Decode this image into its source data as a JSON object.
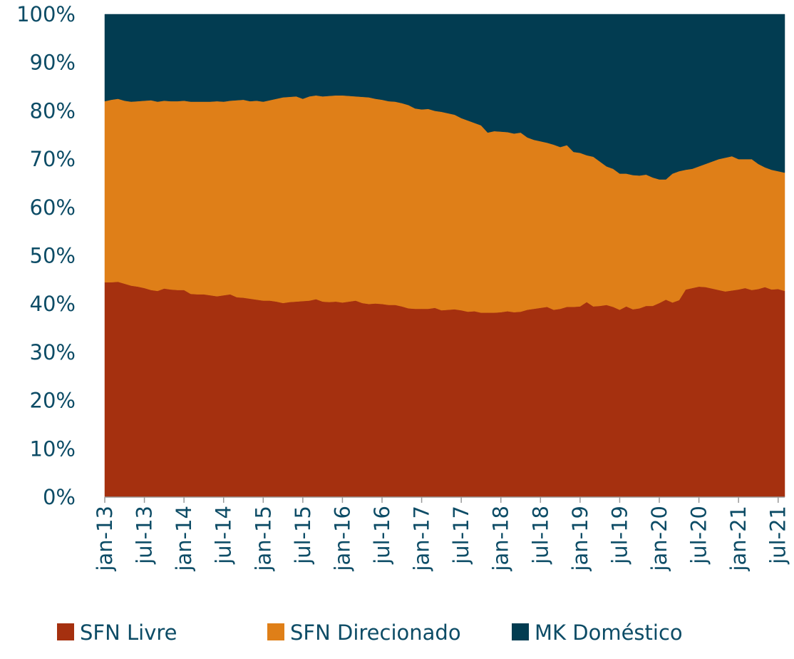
{
  "chart_data": {
    "type": "area",
    "stacked": true,
    "categories": [
      "jan-13",
      null,
      null,
      null,
      null,
      null,
      "jul-13",
      null,
      null,
      null,
      null,
      null,
      "jan-14",
      null,
      null,
      null,
      null,
      null,
      "jul-14",
      null,
      null,
      null,
      null,
      null,
      "jan-15",
      null,
      null,
      null,
      null,
      null,
      "jul-15",
      null,
      null,
      null,
      null,
      null,
      "jan-16",
      null,
      null,
      null,
      null,
      null,
      "jul-16",
      null,
      null,
      null,
      null,
      null,
      "jan-17",
      null,
      null,
      null,
      null,
      null,
      "jul-17",
      null,
      null,
      null,
      null,
      null,
      "jan-18",
      null,
      null,
      null,
      null,
      null,
      "jul-18",
      null,
      null,
      null,
      null,
      null,
      "jan-19",
      null,
      null,
      null,
      null,
      null,
      "jul-19",
      null,
      null,
      null,
      null,
      null,
      "jan-20",
      null,
      null,
      null,
      null,
      null,
      "jul-20",
      null,
      null,
      null,
      null,
      null,
      "jan-21",
      null,
      null,
      null,
      null,
      null,
      "jul-21",
      null
    ],
    "series": [
      {
        "name": "SFN Livre",
        "color": "#a5300f",
        "values": [
          44.5,
          44.5,
          44.6,
          44.2,
          43.8,
          43.6,
          43.3,
          42.9,
          42.7,
          43.2,
          43.0,
          42.9,
          42.9,
          42.1,
          42.0,
          42.0,
          41.8,
          41.6,
          41.8,
          42.0,
          41.4,
          41.3,
          41.1,
          40.9,
          40.7,
          40.7,
          40.5,
          40.2,
          40.4,
          40.5,
          40.6,
          40.7,
          41.0,
          40.5,
          40.4,
          40.5,
          40.3,
          40.5,
          40.7,
          40.2,
          40.0,
          40.1,
          40.0,
          39.8,
          39.8,
          39.5,
          39.1,
          39.0,
          39.0,
          39.0,
          39.2,
          38.7,
          38.8,
          38.9,
          38.7,
          38.4,
          38.5,
          38.2,
          38.2,
          38.2,
          38.3,
          38.5,
          38.3,
          38.4,
          38.8,
          39.0,
          39.2,
          39.4,
          38.8,
          39.0,
          39.4,
          39.4,
          39.5,
          40.4,
          39.5,
          39.6,
          39.8,
          39.4,
          38.8,
          39.5,
          38.9,
          39.1,
          39.6,
          39.6,
          40.2,
          40.9,
          40.3,
          40.8,
          43.0,
          43.3,
          43.6,
          43.5,
          43.2,
          42.9,
          42.6,
          42.8,
          43.0,
          43.3,
          42.9,
          43.1,
          43.5,
          43.0,
          43.1,
          42.7
        ]
      },
      {
        "name": "SFN Direcionado",
        "color": "#df7f18",
        "values": [
          37.5,
          37.8,
          37.9,
          37.9,
          38.1,
          38.4,
          38.8,
          39.3,
          39.2,
          38.9,
          39.0,
          39.1,
          39.2,
          39.8,
          39.9,
          39.9,
          40.1,
          40.4,
          40.1,
          40.1,
          40.8,
          41.0,
          40.9,
          41.2,
          41.2,
          41.5,
          42.0,
          42.6,
          42.5,
          42.5,
          41.9,
          42.3,
          42.2,
          42.5,
          42.7,
          42.7,
          42.9,
          42.6,
          42.3,
          42.7,
          42.8,
          42.4,
          42.3,
          42.2,
          42.1,
          42.1,
          42.1,
          41.5,
          41.3,
          41.4,
          40.8,
          41.1,
          40.7,
          40.3,
          39.8,
          39.6,
          39.0,
          38.8,
          37.3,
          37.6,
          37.4,
          37.1,
          37.0,
          37.1,
          35.7,
          35.0,
          34.5,
          34.0,
          34.2,
          33.5,
          33.5,
          32.1,
          31.8,
          30.4,
          31.0,
          29.9,
          28.7,
          28.6,
          28.2,
          27.5,
          27.8,
          27.5,
          27.2,
          26.6,
          25.6,
          24.9,
          26.7,
          26.7,
          24.8,
          24.7,
          24.9,
          25.5,
          26.3,
          27.1,
          27.7,
          27.8,
          27.0,
          26.7,
          27.1,
          25.9,
          24.8,
          24.8,
          24.4,
          24.5
        ]
      },
      {
        "name": "MK Doméstico",
        "color": "#023c51",
        "values": [
          18.0,
          17.7,
          17.5,
          17.9,
          18.1,
          18.0,
          17.9,
          17.8,
          18.1,
          17.9,
          18.0,
          18.0,
          17.9,
          18.1,
          18.1,
          18.1,
          18.1,
          18.0,
          18.1,
          17.9,
          17.8,
          17.7,
          18.0,
          17.9,
          18.1,
          17.8,
          17.5,
          17.2,
          17.1,
          17.0,
          17.5,
          17.0,
          16.8,
          17.0,
          16.9,
          16.8,
          16.8,
          16.9,
          17.0,
          17.1,
          17.2,
          17.5,
          17.7,
          18.0,
          18.1,
          18.4,
          18.8,
          19.5,
          19.7,
          19.6,
          20.0,
          20.2,
          20.5,
          20.8,
          21.5,
          22.0,
          22.5,
          23.0,
          24.5,
          24.2,
          24.3,
          24.4,
          24.7,
          24.5,
          25.5,
          26.0,
          26.3,
          26.6,
          27.0,
          27.5,
          27.1,
          28.5,
          28.7,
          29.2,
          29.5,
          30.5,
          31.5,
          32.0,
          33.0,
          33.0,
          33.3,
          33.4,
          33.2,
          33.8,
          34.2,
          34.2,
          33.0,
          32.5,
          32.2,
          32.0,
          31.5,
          31.0,
          30.5,
          30.0,
          29.7,
          29.4,
          30.0,
          30.0,
          30.0,
          31.0,
          31.7,
          32.2,
          32.5,
          32.8
        ]
      }
    ],
    "ylim": [
      0,
      100
    ],
    "yticks": [
      {
        "value": 0,
        "label": "0%"
      },
      {
        "value": 10,
        "label": "10%"
      },
      {
        "value": 20,
        "label": "20%"
      },
      {
        "value": 30,
        "label": "30%"
      },
      {
        "value": 40,
        "label": "40%"
      },
      {
        "value": 50,
        "label": "50%"
      },
      {
        "value": 60,
        "label": "60%"
      },
      {
        "value": 70,
        "label": "70%"
      },
      {
        "value": 80,
        "label": "80%"
      },
      {
        "value": 90,
        "label": "90%"
      },
      {
        "value": 100,
        "label": "100%"
      }
    ],
    "grid": false,
    "legend": "bottom"
  }
}
